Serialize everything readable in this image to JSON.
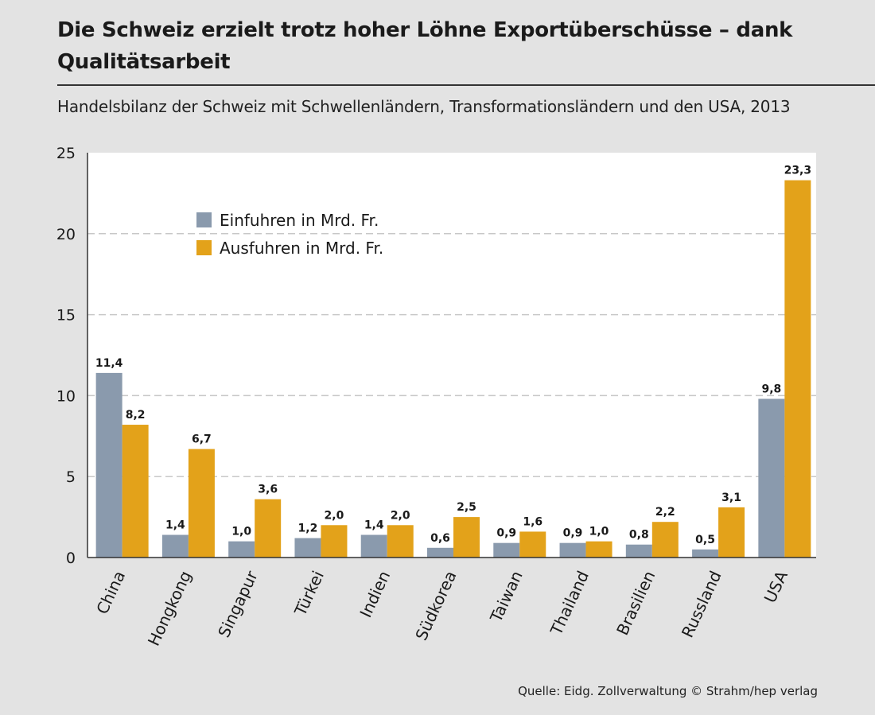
{
  "header": {
    "title": "Die Schweiz erzielt trotz hoher Löhne Exportüberschüsse – dank Qualitätsarbeit",
    "subtitle": "Handelsbilanz der Schweiz mit Schwellenländern, Transformationsländern und den USA, 2013"
  },
  "footer": {
    "source": "Quelle: Eidg. Zollverwaltung  © Strahm/hep verlag"
  },
  "colors": {
    "imports": "#8a9aad",
    "exports": "#e3a21a",
    "plot_bg": "#ffffff",
    "page_bg": "#e3e3e3",
    "grid": "#c8c8c8"
  },
  "chart_data": {
    "type": "bar",
    "title": "Die Schweiz erzielt trotz hoher Löhne Exportüberschüsse – dank Qualitätsarbeit",
    "subtitle": "Handelsbilanz der Schweiz mit Schwellenländern, Transformationsländern und den USA, 2013",
    "xlabel": "",
    "ylabel": "",
    "ylim": [
      0,
      25
    ],
    "yticks": [
      0,
      5,
      10,
      15,
      20,
      25
    ],
    "grid": true,
    "legend_position": "top-left",
    "categories": [
      "China",
      "Hongkong",
      "Singapur",
      "Türkei",
      "Indien",
      "Südkorea",
      "Taiwan",
      "Thailand",
      "Brasilien",
      "Russland",
      "USA"
    ],
    "series": [
      {
        "name": "Einfuhren in Mrd. Fr.",
        "color": "#8a9aad",
        "values": [
          11.4,
          1.4,
          1.0,
          1.2,
          1.4,
          0.6,
          0.9,
          0.9,
          0.8,
          0.5,
          9.8
        ],
        "labels": [
          "11,4",
          "1,4",
          "1,0",
          "1,2",
          "1,4",
          "0,6",
          "0,9",
          "0,9",
          "0,8",
          "0,5",
          "9,8"
        ]
      },
      {
        "name": "Ausfuhren in Mrd. Fr.",
        "color": "#e3a21a",
        "values": [
          8.2,
          6.7,
          3.6,
          2.0,
          2.0,
          2.5,
          1.6,
          1.0,
          2.2,
          3.1,
          23.3
        ],
        "labels": [
          "8,2",
          "6,7",
          "3,6",
          "2,0",
          "2,0",
          "2,5",
          "1,6",
          "1,0",
          "2,2",
          "3,1",
          "23,3"
        ]
      }
    ]
  }
}
